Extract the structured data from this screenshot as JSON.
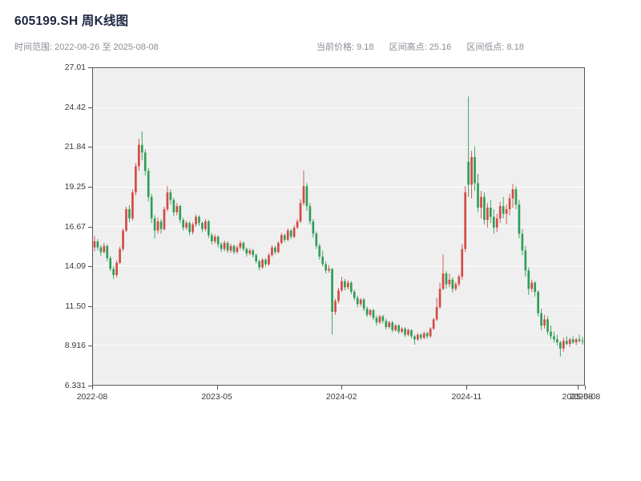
{
  "header": {
    "title": "605199.SH 周K线图",
    "time_range_label": "时间范围:",
    "time_range": "2022-08-26 至 2025-08-08",
    "stats": [
      {
        "label": "当前价格:",
        "value": "9.18"
      },
      {
        "label": "区间高点:",
        "value": "25.16"
      },
      {
        "label": "区间低点:",
        "value": "8.18"
      }
    ]
  },
  "chart_data": {
    "type": "candlestick",
    "title": "605199.SH 周K线图",
    "symbol": "605199.SH",
    "frequency": "weekly",
    "date_start": "2022-08-26",
    "date_end": "2025-08-08",
    "current_price": 9.18,
    "range_high": 25.16,
    "range_low": 8.18,
    "up_color": "#d24a43",
    "down_color": "#2e9e56",
    "plot_bg": "#efefef",
    "grid_color": "#ffffff",
    "grid": "horizontal",
    "legend": "none",
    "ylim": [
      6.331,
      27.01
    ],
    "y_ticks": [
      {
        "value": 6.331,
        "label": "6.331"
      },
      {
        "value": 8.916,
        "label": "8.916"
      },
      {
        "value": 11.5,
        "label": "11.50"
      },
      {
        "value": 14.09,
        "label": "14.09"
      },
      {
        "value": 16.67,
        "label": "16.67"
      },
      {
        "value": 19.25,
        "label": "19.25"
      },
      {
        "value": 21.84,
        "label": "21.84"
      },
      {
        "value": 24.42,
        "label": "24.42"
      },
      {
        "value": 27.01,
        "label": "27.01"
      }
    ],
    "x_ticks": [
      {
        "pos": 0.0,
        "label": "2022-08"
      },
      {
        "pos": 0.253,
        "label": "2023-05"
      },
      {
        "pos": 0.506,
        "label": "2024-02"
      },
      {
        "pos": 0.76,
        "label": "2024-11"
      },
      {
        "pos": 0.985,
        "label": "2025-08"
      },
      {
        "pos": 1.0,
        "label": "2025-08"
      }
    ],
    "candles_format": [
      "open",
      "high",
      "low",
      "close"
    ],
    "candles": [
      [
        15.3,
        16.05,
        15.05,
        15.7
      ],
      [
        15.7,
        15.85,
        15.1,
        15.3
      ],
      [
        15.3,
        15.45,
        14.75,
        15.0
      ],
      [
        15.0,
        15.6,
        14.9,
        15.4
      ],
      [
        15.4,
        15.5,
        14.4,
        14.6
      ],
      [
        14.6,
        14.75,
        13.75,
        13.9
      ],
      [
        13.9,
        14.1,
        13.25,
        13.5
      ],
      [
        13.5,
        14.45,
        13.35,
        14.3
      ],
      [
        14.3,
        15.35,
        14.2,
        15.2
      ],
      [
        15.2,
        16.55,
        15.05,
        16.4
      ],
      [
        16.4,
        17.95,
        16.3,
        17.8
      ],
      [
        17.8,
        18.05,
        16.95,
        17.2
      ],
      [
        17.2,
        19.1,
        17.05,
        18.9
      ],
      [
        18.9,
        20.8,
        18.7,
        20.6
      ],
      [
        20.6,
        22.4,
        20.3,
        22.0
      ],
      [
        22.0,
        22.87,
        21.0,
        21.5
      ],
      [
        21.5,
        21.7,
        20.0,
        20.3
      ],
      [
        20.3,
        20.5,
        18.3,
        18.6
      ],
      [
        18.6,
        18.8,
        16.9,
        17.2
      ],
      [
        17.2,
        17.4,
        15.9,
        16.4
      ],
      [
        16.4,
        17.25,
        16.2,
        17.0
      ],
      [
        17.0,
        17.15,
        16.2,
        16.5
      ],
      [
        16.5,
        17.95,
        16.4,
        17.8
      ],
      [
        17.8,
        19.3,
        17.65,
        18.9
      ],
      [
        18.9,
        19.1,
        18.1,
        18.4
      ],
      [
        18.4,
        18.55,
        17.35,
        17.6
      ],
      [
        17.6,
        18.2,
        17.4,
        18.0
      ],
      [
        18.0,
        18.1,
        16.9,
        17.1
      ],
      [
        17.1,
        17.25,
        16.4,
        16.6
      ],
      [
        16.6,
        17.05,
        16.45,
        16.9
      ],
      [
        16.9,
        17.0,
        16.1,
        16.3
      ],
      [
        16.3,
        16.95,
        16.15,
        16.8
      ],
      [
        16.8,
        17.45,
        16.65,
        17.3
      ],
      [
        17.3,
        17.4,
        16.7,
        16.9
      ],
      [
        16.9,
        17.0,
        16.3,
        16.5
      ],
      [
        16.5,
        17.15,
        16.35,
        17.0
      ],
      [
        17.0,
        17.1,
        15.9,
        16.1
      ],
      [
        16.1,
        16.25,
        15.5,
        15.7
      ],
      [
        15.7,
        16.15,
        15.55,
        16.0
      ],
      [
        16.0,
        16.1,
        15.3,
        15.5
      ],
      [
        15.5,
        15.65,
        15.0,
        15.2
      ],
      [
        15.2,
        15.75,
        15.05,
        15.6
      ],
      [
        15.6,
        15.7,
        14.95,
        15.1
      ],
      [
        15.1,
        15.55,
        14.95,
        15.4
      ],
      [
        15.4,
        15.5,
        14.85,
        15.0
      ],
      [
        15.0,
        15.45,
        14.9,
        15.3
      ],
      [
        15.3,
        15.75,
        15.15,
        15.6
      ],
      [
        15.6,
        15.7,
        15.05,
        15.2
      ],
      [
        15.2,
        15.3,
        14.7,
        14.9
      ],
      [
        14.9,
        15.25,
        14.8,
        15.1
      ],
      [
        15.1,
        15.2,
        14.65,
        14.8
      ],
      [
        14.8,
        14.9,
        14.25,
        14.4
      ],
      [
        14.4,
        14.5,
        13.8,
        14.0
      ],
      [
        14.0,
        14.6,
        13.9,
        14.5
      ],
      [
        14.5,
        14.6,
        14.05,
        14.2
      ],
      [
        14.2,
        14.95,
        14.1,
        14.8
      ],
      [
        14.8,
        15.45,
        14.7,
        15.3
      ],
      [
        15.3,
        15.4,
        14.85,
        15.0
      ],
      [
        15.0,
        15.7,
        14.9,
        15.6
      ],
      [
        15.6,
        16.25,
        15.5,
        16.1
      ],
      [
        16.1,
        16.2,
        15.65,
        15.8
      ],
      [
        15.8,
        16.55,
        15.7,
        16.4
      ],
      [
        16.4,
        16.5,
        15.85,
        16.0
      ],
      [
        16.0,
        16.75,
        15.9,
        16.6
      ],
      [
        16.6,
        17.15,
        16.5,
        17.0
      ],
      [
        17.0,
        18.45,
        16.9,
        18.2
      ],
      [
        18.2,
        20.33,
        18.05,
        19.3
      ],
      [
        19.3,
        19.5,
        17.7,
        18.0
      ],
      [
        18.0,
        18.2,
        16.8,
        17.0
      ],
      [
        17.0,
        17.15,
        15.95,
        16.2
      ],
      [
        16.2,
        16.35,
        15.2,
        15.4
      ],
      [
        15.4,
        15.55,
        14.5,
        14.7
      ],
      [
        14.7,
        15.1,
        14.05,
        14.2
      ],
      [
        14.2,
        14.4,
        13.6,
        13.8
      ],
      [
        13.8,
        14.15,
        13.65,
        13.9
      ],
      [
        13.9,
        13.95,
        9.6,
        11.1
      ],
      [
        11.1,
        11.95,
        10.9,
        11.8
      ],
      [
        11.8,
        12.65,
        11.65,
        12.5
      ],
      [
        12.5,
        13.4,
        12.4,
        13.1
      ],
      [
        13.1,
        13.25,
        12.5,
        12.7
      ],
      [
        12.7,
        13.15,
        12.55,
        13.0
      ],
      [
        13.0,
        13.1,
        12.25,
        12.4
      ],
      [
        12.4,
        12.55,
        11.85,
        12.0
      ],
      [
        12.0,
        12.15,
        11.4,
        11.6
      ],
      [
        11.6,
        12.0,
        11.45,
        11.9
      ],
      [
        11.9,
        12.0,
        11.15,
        11.3
      ],
      [
        11.3,
        11.45,
        10.75,
        10.9
      ],
      [
        10.9,
        11.3,
        10.8,
        11.2
      ],
      [
        11.2,
        11.3,
        10.55,
        10.7
      ],
      [
        10.7,
        10.85,
        10.2,
        10.4
      ],
      [
        10.4,
        10.9,
        10.3,
        10.8
      ],
      [
        10.8,
        10.9,
        10.35,
        10.5
      ],
      [
        10.5,
        10.65,
        9.95,
        10.1
      ],
      [
        10.1,
        10.5,
        10.0,
        10.4
      ],
      [
        10.4,
        10.5,
        9.75,
        9.9
      ],
      [
        9.9,
        10.3,
        9.8,
        10.2
      ],
      [
        10.2,
        10.3,
        9.65,
        9.8
      ],
      [
        9.8,
        10.1,
        9.7,
        10.0
      ],
      [
        10.0,
        10.1,
        9.45,
        9.6
      ],
      [
        9.6,
        10.0,
        9.5,
        9.9
      ],
      [
        9.9,
        9.95,
        9.35,
        9.5
      ],
      [
        9.5,
        9.6,
        8.95,
        9.3
      ],
      [
        9.3,
        9.7,
        9.2,
        9.6
      ],
      [
        9.6,
        9.7,
        9.25,
        9.4
      ],
      [
        9.4,
        9.8,
        9.3,
        9.7
      ],
      [
        9.7,
        9.8,
        9.35,
        9.5
      ],
      [
        9.5,
        10.1,
        9.4,
        10.0
      ],
      [
        10.0,
        10.7,
        9.9,
        10.6
      ],
      [
        10.6,
        12.0,
        10.5,
        11.4
      ],
      [
        11.4,
        13.0,
        11.3,
        12.6
      ],
      [
        12.6,
        14.85,
        12.5,
        13.6
      ],
      [
        13.6,
        13.75,
        12.6,
        12.9
      ],
      [
        12.9,
        13.6,
        12.7,
        13.2
      ],
      [
        13.2,
        13.35,
        12.35,
        12.6
      ],
      [
        12.6,
        13.05,
        12.45,
        12.9
      ],
      [
        12.9,
        13.55,
        12.75,
        13.4
      ],
      [
        13.4,
        15.5,
        13.2,
        15.2
      ],
      [
        15.2,
        19.3,
        15.0,
        18.9
      ],
      [
        20.9,
        25.16,
        18.6,
        19.4
      ],
      [
        19.4,
        21.6,
        18.5,
        21.2
      ],
      [
        21.2,
        21.9,
        19.0,
        19.5
      ],
      [
        19.5,
        20.1,
        17.6,
        17.9
      ],
      [
        17.9,
        19.0,
        17.2,
        18.6
      ],
      [
        18.6,
        18.9,
        16.8,
        17.1
      ],
      [
        17.1,
        18.2,
        16.6,
        17.9
      ],
      [
        17.9,
        18.4,
        16.9,
        17.3
      ],
      [
        17.3,
        17.8,
        16.2,
        16.6
      ],
      [
        16.6,
        17.5,
        16.3,
        17.2
      ],
      [
        17.2,
        18.3,
        16.9,
        18.0
      ],
      [
        18.0,
        18.6,
        17.2,
        17.5
      ],
      [
        17.5,
        18.1,
        16.8,
        17.8
      ],
      [
        17.8,
        18.8,
        17.4,
        18.5
      ],
      [
        18.5,
        19.45,
        17.9,
        19.1
      ],
      [
        19.1,
        19.3,
        17.8,
        18.1
      ],
      [
        18.1,
        18.4,
        15.9,
        16.2
      ],
      [
        16.2,
        16.5,
        14.8,
        15.1
      ],
      [
        15.1,
        15.4,
        13.4,
        13.8
      ],
      [
        13.8,
        14.0,
        12.2,
        12.6
      ],
      [
        12.6,
        13.2,
        12.4,
        13.0
      ],
      [
        13.0,
        13.1,
        12.1,
        12.4
      ],
      [
        12.4,
        12.5,
        10.8,
        11.0
      ],
      [
        11.0,
        11.3,
        9.9,
        10.2
      ],
      [
        10.2,
        10.9,
        10.0,
        10.6
      ],
      [
        10.6,
        10.8,
        9.6,
        9.8
      ],
      [
        9.8,
        10.2,
        9.3,
        9.5
      ],
      [
        9.5,
        9.8,
        9.1,
        9.3
      ],
      [
        9.3,
        9.6,
        8.9,
        9.1
      ],
      [
        9.1,
        9.2,
        8.18,
        8.7
      ],
      [
        8.7,
        9.4,
        8.5,
        9.2
      ],
      [
        9.2,
        9.5,
        8.9,
        9.0
      ],
      [
        9.0,
        9.4,
        8.8,
        9.3
      ],
      [
        9.3,
        9.5,
        9.0,
        9.1
      ],
      [
        9.1,
        9.4,
        8.9,
        9.3
      ],
      [
        9.3,
        9.6,
        9.1,
        9.2
      ],
      [
        9.2,
        9.45,
        8.95,
        9.18
      ]
    ]
  }
}
